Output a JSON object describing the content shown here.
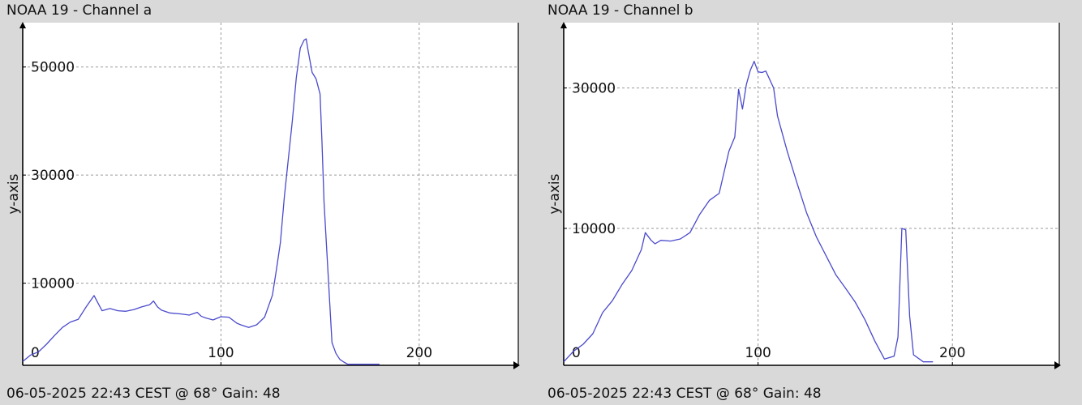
{
  "colors": {
    "line": "#4a4acc",
    "grid": "#9a9a9a",
    "background": "#d9d9d9",
    "plot_bg": "#ffffff"
  },
  "chart_data": [
    {
      "type": "line",
      "title": "NOAA 19 - Channel a",
      "footer": "06-05-2025 22:43 CEST @ 68° Gain: 48",
      "ylabel": "y-axis",
      "xlim": [
        0,
        250
      ],
      "ylim": [
        -5200,
        58200
      ],
      "xticks": [
        {
          "v": 0,
          "label": "0"
        },
        {
          "v": 100,
          "label": "100"
        },
        {
          "v": 200,
          "label": "200"
        }
      ],
      "yticks": [
        {
          "v": 10000,
          "label": "10000"
        },
        {
          "v": 30000,
          "label": "30000"
        },
        {
          "v": 50000,
          "label": "50000"
        }
      ],
      "grid": true,
      "series": [
        {
          "x": [
            0,
            4,
            8,
            12,
            16,
            20,
            24,
            28,
            32,
            36,
            38,
            40,
            42,
            44,
            48,
            52,
            56,
            60,
            64,
            66,
            68,
            70,
            74,
            80,
            84,
            88,
            90,
            92,
            96,
            100,
            104,
            108,
            110,
            114,
            118,
            122,
            126,
            128,
            130,
            132,
            134,
            136,
            138,
            140,
            142,
            143,
            144,
            146,
            148,
            150,
            151,
            152,
            154,
            156,
            158,
            160,
            162,
            164,
            168,
            172,
            176,
            180
          ],
          "y": [
            -4500,
            -3300,
            -2700,
            -1300,
            300,
            1800,
            2800,
            3300,
            5600,
            7700,
            6300,
            4900,
            5100,
            5300,
            4900,
            4800,
            5100,
            5600,
            6000,
            6700,
            5600,
            5000,
            4500,
            4300,
            4100,
            4600,
            3900,
            3600,
            3200,
            3800,
            3700,
            2600,
            2300,
            1800,
            2300,
            3700,
            7800,
            12500,
            17500,
            26000,
            33000,
            40000,
            48000,
            53500,
            55000,
            55200,
            53000,
            49000,
            47800,
            45000,
            36000,
            25000,
            12000,
            -1000,
            -3000,
            -4100,
            -4600,
            -5000,
            -5000,
            -5000,
            -5000,
            -5000
          ]
        }
      ]
    },
    {
      "type": "line",
      "title": "NOAA 19 - Channel b",
      "footer": "06-05-2025 22:43 CEST @ 68° Gain: 48",
      "ylabel": "y-axis",
      "xlim": [
        0,
        255
      ],
      "ylim": [
        -9500,
        39300
      ],
      "xticks": [
        {
          "v": 0,
          "label": "0"
        },
        {
          "v": 100,
          "label": "100"
        },
        {
          "v": 200,
          "label": "200"
        }
      ],
      "yticks": [
        {
          "v": 10000,
          "label": "10000"
        },
        {
          "v": 30000,
          "label": "30000"
        }
      ],
      "grid": true,
      "series": [
        {
          "x": [
            0,
            5,
            10,
            15,
            20,
            25,
            30,
            35,
            40,
            42,
            45,
            47,
            50,
            55,
            60,
            65,
            70,
            75,
            80,
            85,
            88,
            90,
            92,
            94,
            96,
            98,
            100,
            102,
            104,
            108,
            110,
            115,
            120,
            125,
            130,
            135,
            140,
            145,
            150,
            155,
            160,
            165,
            170,
            172,
            174,
            176,
            178,
            180,
            185,
            190
          ],
          "y": [
            -9000,
            -7500,
            -6500,
            -5000,
            -2000,
            -300,
            2000,
            4000,
            7000,
            9400,
            8300,
            7800,
            8300,
            8200,
            8500,
            9400,
            12000,
            14000,
            15000,
            21000,
            23000,
            29800,
            27000,
            30500,
            32500,
            33800,
            32300,
            32200,
            32400,
            30000,
            26000,
            21000,
            16500,
            12200,
            8800,
            6100,
            3400,
            1500,
            -500,
            -3000,
            -6000,
            -8600,
            -8200,
            -5500,
            10000,
            9800,
            -2500,
            -8000,
            -9000,
            -9000
          ]
        }
      ]
    }
  ]
}
